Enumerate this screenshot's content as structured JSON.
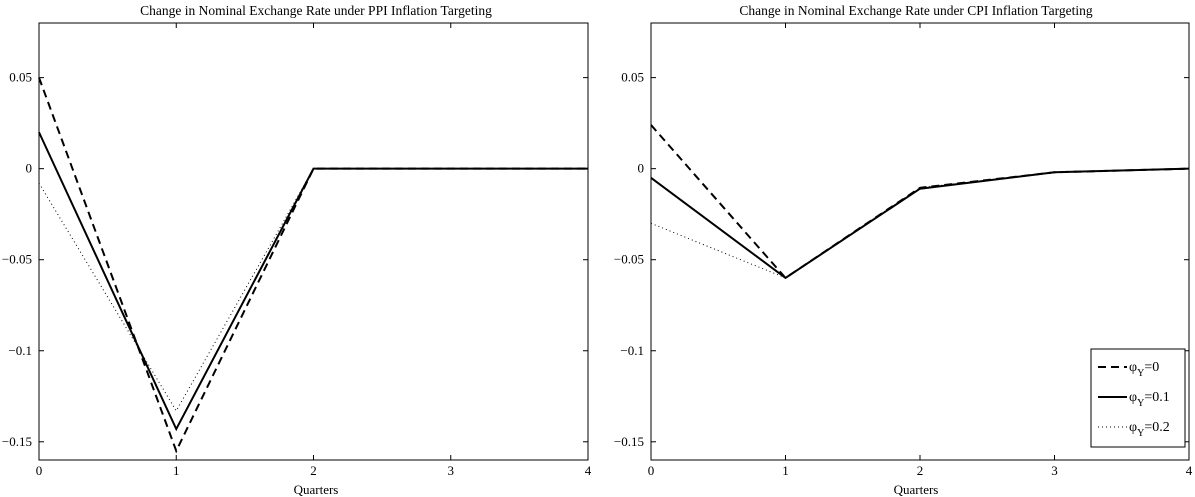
{
  "chart_data": [
    {
      "type": "line",
      "title": "Change in Nominal Exchange Rate under PPI Inflation Targeting",
      "xlabel": "Quarters",
      "ylabel": "",
      "xlim": [
        0,
        4
      ],
      "ylim": [
        -0.16,
        0.08
      ],
      "x_ticks": [
        0,
        1,
        2,
        3,
        4
      ],
      "x_tick_labels": [
        "0",
        "1",
        "2",
        "3",
        "4"
      ],
      "y_ticks": [
        0.05,
        0,
        -0.05,
        -0.1,
        -0.15
      ],
      "y_tick_labels": [
        "0.05",
        "0",
        "−0.05",
        "−0.1",
        "−0.15"
      ],
      "grid": false,
      "x": [
        0,
        1,
        2,
        3,
        4
      ],
      "series": [
        {
          "values": [
            0.05,
            -0.155,
            0,
            0,
            0
          ],
          "style": "dashed"
        },
        {
          "values": [
            0.02,
            -0.143,
            0,
            0,
            0
          ],
          "style": "solid"
        },
        {
          "values": [
            -0.008,
            -0.133,
            0,
            0,
            0
          ],
          "style": "dotted"
        }
      ]
    },
    {
      "type": "line",
      "title": "Change in Nominal Exchange Rate under CPI Inflation Targeting",
      "xlabel": "Quarters",
      "ylabel": "",
      "xlim": [
        0,
        4
      ],
      "ylim": [
        -0.16,
        0.08
      ],
      "x_ticks": [
        0,
        1,
        2,
        3,
        4
      ],
      "x_tick_labels": [
        "0",
        "1",
        "2",
        "3",
        "4"
      ],
      "y_ticks": [
        0.05,
        0,
        -0.05,
        -0.1,
        -0.15
      ],
      "y_tick_labels": [
        "0.05",
        "0",
        "−0.05",
        "−0.1",
        "−0.15"
      ],
      "grid": false,
      "legend_position": "bottom-right",
      "x": [
        0,
        1,
        2,
        3,
        4
      ],
      "series": [
        {
          "name_main": "φ",
          "name_sub": "Y",
          "name_tail": "=0",
          "values": [
            0.024,
            -0.06,
            -0.0105,
            -0.002,
            0
          ],
          "style": "dashed"
        },
        {
          "name_main": "φ",
          "name_sub": "Y",
          "name_tail": "=0.1",
          "values": [
            -0.005,
            -0.06,
            -0.011,
            -0.002,
            0
          ],
          "style": "solid"
        },
        {
          "name_main": "φ",
          "name_sub": "Y",
          "name_tail": "=0.2",
          "values": [
            -0.03,
            -0.06,
            -0.0105,
            -0.002,
            0
          ],
          "style": "dotted"
        }
      ]
    }
  ]
}
